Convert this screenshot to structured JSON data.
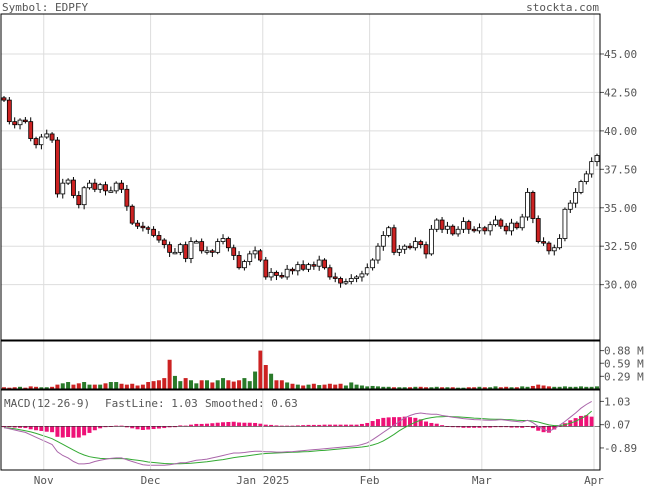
{
  "header": {
    "symbol_label": "Symbol: EDPFY",
    "site": "stockta.com"
  },
  "chart_data": {
    "type": "candlestick",
    "symbol": "EDPFY",
    "price_axis": {
      "ticks": [
        "45.00",
        "42.50",
        "40.00",
        "37.50",
        "35.00",
        "32.50",
        "30.00"
      ],
      "range": [
        26.4,
        47.6
      ]
    },
    "volume_axis": {
      "ticks": [
        "0.88 M",
        "0.59 M",
        "0.29 M"
      ],
      "range": [
        0,
        1.1
      ]
    },
    "macd_axis": {
      "ticks": [
        "1.03",
        "0.07",
        "-0.89"
      ],
      "range": [
        -1.8,
        1.5
      ]
    },
    "x_labels": [
      "Nov",
      "Dec",
      "Jan 2025",
      "Feb",
      "Mar",
      "Apr"
    ],
    "x_label_index": [
      8,
      28,
      49,
      69,
      90,
      111
    ],
    "macd_legend": {
      "title": "MACD(12-26-9)",
      "fast_label": "FastLine: 1.03",
      "smooth_label": "Smoothed: 0.63"
    },
    "colors": {
      "up": "#ffffff",
      "down": "#cc2222",
      "vol_up": "#2a7a2a",
      "vol_down": "#cc2222",
      "grid": "#dddddd",
      "fast_line": "#aa66aa",
      "smooth_line": "#33aa33",
      "histogram": "#ee1177",
      "fast_text": "#aa55aa",
      "smooth_text": "#33aa33"
    },
    "close": [
      42.0,
      40.6,
      40.4,
      40.7,
      40.6,
      39.5,
      39.1,
      39.6,
      39.8,
      39.4,
      35.9,
      36.6,
      36.8,
      35.8,
      35.2,
      36.3,
      36.6,
      36.2,
      36.5,
      36.1,
      36.1,
      36.6,
      36.2,
      35.1,
      34.0,
      33.8,
      33.7,
      33.6,
      33.2,
      32.9,
      32.6,
      32.1,
      32.1,
      32.6,
      31.7,
      32.8,
      32.8,
      32.2,
      32.2,
      32.1,
      32.8,
      33.0,
      32.4,
      31.9,
      31.1,
      31.5,
      32.0,
      32.2,
      31.6,
      30.5,
      30.8,
      30.6,
      30.5,
      31.0,
      30.9,
      31.3,
      31.0,
      31.3,
      31.2,
      31.6,
      31.1,
      30.5,
      30.4,
      30.1,
      30.2,
      30.4,
      30.5,
      30.7,
      31.1,
      31.6,
      32.5,
      33.2,
      33.7,
      32.1,
      32.3,
      32.5,
      32.4,
      32.8,
      32.6,
      32.0,
      33.6,
      34.2,
      33.6,
      33.8,
      33.3,
      33.6,
      34.1,
      33.6,
      33.5,
      33.7,
      33.5,
      33.9,
      34.2,
      33.8,
      33.5,
      34.0,
      33.7,
      34.4,
      36.0,
      34.3,
      32.8,
      32.7,
      32.2,
      32.4,
      33.0,
      34.9,
      35.3,
      36.0,
      36.7,
      37.2,
      38.0,
      38.4
    ],
    "volume": [
      0.04,
      0.03,
      0.04,
      0.05,
      0.03,
      0.06,
      0.05,
      0.04,
      0.04,
      0.05,
      0.1,
      0.13,
      0.16,
      0.1,
      0.13,
      0.16,
      0.1,
      0.1,
      0.1,
      0.13,
      0.16,
      0.16,
      0.12,
      0.1,
      0.12,
      0.08,
      0.1,
      0.16,
      0.18,
      0.2,
      0.25,
      0.67,
      0.3,
      0.18,
      0.25,
      0.2,
      0.13,
      0.2,
      0.2,
      0.15,
      0.2,
      0.25,
      0.2,
      0.17,
      0.2,
      0.25,
      0.18,
      0.4,
      0.88,
      0.55,
      0.35,
      0.2,
      0.2,
      0.15,
      0.12,
      0.1,
      0.08,
      0.1,
      0.12,
      0.09,
      0.1,
      0.12,
      0.1,
      0.12,
      0.08,
      0.15,
      0.1,
      0.08,
      0.06,
      0.07,
      0.06,
      0.05,
      0.05,
      0.04,
      0.04,
      0.04,
      0.04,
      0.05,
      0.05,
      0.04,
      0.04,
      0.05,
      0.04,
      0.04,
      0.04,
      0.03,
      0.03,
      0.04,
      0.04,
      0.05,
      0.04,
      0.04,
      0.06,
      0.04,
      0.05,
      0.04,
      0.04,
      0.06,
      0.05,
      0.07,
      0.1,
      0.08,
      0.06,
      0.05,
      0.05,
      0.06,
      0.05,
      0.05,
      0.06,
      0.05,
      0.05,
      0.06
    ],
    "macd_fast": [
      -0.05,
      -0.1,
      -0.15,
      -0.2,
      -0.25,
      -0.35,
      -0.45,
      -0.55,
      -0.65,
      -0.75,
      -1.05,
      -1.2,
      -1.3,
      -1.45,
      -1.55,
      -1.55,
      -1.52,
      -1.45,
      -1.4,
      -1.36,
      -1.32,
      -1.3,
      -1.3,
      -1.38,
      -1.45,
      -1.52,
      -1.58,
      -1.6,
      -1.6,
      -1.6,
      -1.6,
      -1.58,
      -1.55,
      -1.5,
      -1.5,
      -1.45,
      -1.4,
      -1.38,
      -1.35,
      -1.3,
      -1.25,
      -1.2,
      -1.15,
      -1.1,
      -1.1,
      -1.08,
      -1.05,
      -1.03,
      -1.03,
      -1.05,
      -1.05,
      -1.06,
      -1.06,
      -1.05,
      -1.04,
      -1.02,
      -1.0,
      -0.98,
      -0.96,
      -0.94,
      -0.92,
      -0.9,
      -0.88,
      -0.86,
      -0.84,
      -0.82,
      -0.8,
      -0.75,
      -0.68,
      -0.55,
      -0.4,
      -0.25,
      -0.1,
      0.05,
      0.2,
      0.35,
      0.45,
      0.52,
      0.55,
      0.52,
      0.5,
      0.5,
      0.45,
      0.42,
      0.38,
      0.35,
      0.32,
      0.3,
      0.28,
      0.27,
      0.26,
      0.25,
      0.26,
      0.28,
      0.25,
      0.22,
      0.2,
      0.18,
      0.25,
      0.15,
      0.0,
      -0.12,
      -0.2,
      -0.1,
      0.05,
      0.2,
      0.38,
      0.55,
      0.75,
      0.9,
      1.03
    ],
    "macd_smooth": [
      -0.05,
      -0.07,
      -0.1,
      -0.14,
      -0.18,
      -0.23,
      -0.29,
      -0.36,
      -0.43,
      -0.51,
      -0.62,
      -0.74,
      -0.86,
      -0.98,
      -1.09,
      -1.18,
      -1.25,
      -1.29,
      -1.32,
      -1.33,
      -1.33,
      -1.33,
      -1.33,
      -1.34,
      -1.37,
      -1.4,
      -1.43,
      -1.47,
      -1.49,
      -1.51,
      -1.53,
      -1.54,
      -1.54,
      -1.54,
      -1.53,
      -1.52,
      -1.5,
      -1.48,
      -1.46,
      -1.43,
      -1.4,
      -1.37,
      -1.33,
      -1.29,
      -1.26,
      -1.23,
      -1.2,
      -1.17,
      -1.14,
      -1.12,
      -1.11,
      -1.1,
      -1.09,
      -1.08,
      -1.07,
      -1.06,
      -1.05,
      -1.04,
      -1.02,
      -1.0,
      -0.99,
      -0.97,
      -0.95,
      -0.93,
      -0.91,
      -0.89,
      -0.87,
      -0.85,
      -0.82,
      -0.77,
      -0.7,
      -0.6,
      -0.47,
      -0.33,
      -0.18,
      -0.05,
      0.07,
      0.17,
      0.26,
      0.32,
      0.36,
      0.39,
      0.4,
      0.41,
      0.4,
      0.39,
      0.38,
      0.36,
      0.34,
      0.33,
      0.31,
      0.3,
      0.29,
      0.29,
      0.28,
      0.27,
      0.25,
      0.24,
      0.24,
      0.22,
      0.18,
      0.12,
      0.06,
      0.03,
      0.03,
      0.07,
      0.13,
      0.21,
      0.32,
      0.44,
      0.63
    ]
  }
}
